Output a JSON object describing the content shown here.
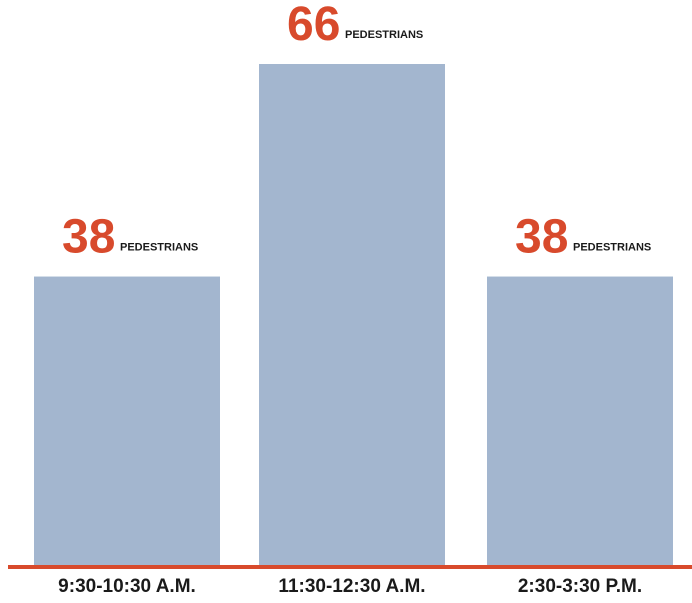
{
  "chart_data": {
    "type": "bar",
    "categories": [
      "9:30-10:30 A.M.",
      "11:30-12:30 A.M.",
      "2:30-3:30 P.M."
    ],
    "values": [
      38,
      66,
      38
    ],
    "value_unit_label": "PEDESTRIANS",
    "ylim": [
      0,
      66
    ],
    "grid": false,
    "colors": {
      "bar": "#a3b6cf",
      "value_text": "#d84a2c",
      "label_text": "#1a1a1a",
      "baseline": "#d84a2c"
    }
  }
}
